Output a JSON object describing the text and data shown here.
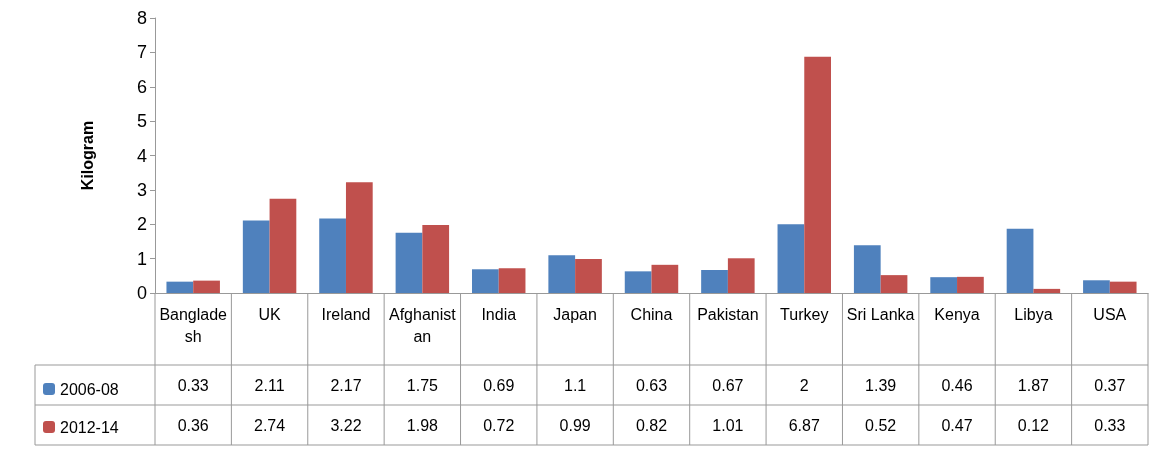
{
  "chart_data": {
    "type": "bar",
    "ylabel": "Kilogram",
    "categories": [
      "Bangladesh",
      "UK",
      "Ireland",
      "Afghanistan",
      "India",
      "Japan",
      "China",
      "Pakistan",
      "Turkey",
      "Sri Lanka",
      "Kenya",
      "Libya",
      "USA"
    ],
    "series": [
      {
        "name": "2006-08",
        "color": "#4f81bd",
        "values": [
          0.33,
          2.11,
          2.17,
          1.75,
          0.69,
          1.1,
          0.63,
          0.67,
          2,
          1.39,
          0.46,
          1.87,
          0.37
        ]
      },
      {
        "name": "2012-14",
        "color": "#c0504d",
        "values": [
          0.36,
          2.74,
          3.22,
          1.98,
          0.72,
          0.99,
          0.82,
          1.01,
          6.87,
          0.52,
          0.47,
          0.12,
          0.33
        ]
      }
    ],
    "ylim": [
      0,
      8
    ],
    "yticks": [
      0,
      1,
      2,
      3,
      4,
      5,
      6,
      7,
      8
    ],
    "grid": false,
    "legend": "bottom left",
    "data_labels": true
  }
}
